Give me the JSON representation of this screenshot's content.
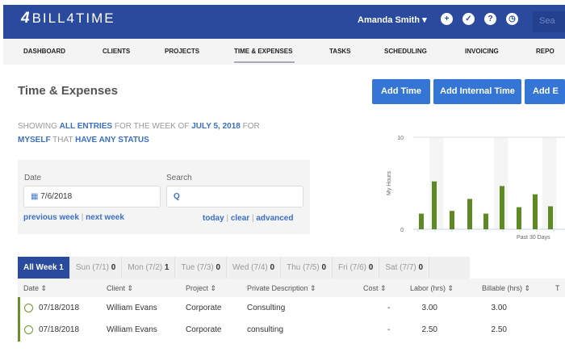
{
  "header": {
    "brand": "BILL4TIME",
    "user": "Amanda Smith",
    "search_placeholder": "Sea",
    "icons": [
      "plus-circle-icon",
      "check-circle-icon",
      "help-icon",
      "clock-icon"
    ]
  },
  "nav": [
    "DASHBOARD",
    "CLIENTS",
    "PROJECTS",
    "TIME & EXPENSES",
    "TASKS",
    "SCHEDULING",
    "INVOICING",
    "REPO"
  ],
  "page": {
    "title": "Time & Expenses",
    "buttons": [
      "Add Time",
      "Add Internal Time",
      "Add E"
    ]
  },
  "filter": {
    "showing": "SHOWING",
    "entries": "ALL ENTRIES",
    "week_of": "FOR THE WEEK OF",
    "date": "JULY 5, 2018",
    "for": "FOR",
    "who": "MYSELF",
    "that": "THAT",
    "status": "HAVE ANY STATUS"
  },
  "form": {
    "date_label": "Date",
    "date_value": "7/6/2018",
    "search_label": "Search",
    "search_value": "",
    "prev": "previous week",
    "next": "next week",
    "today": "today",
    "clear": "clear",
    "advanced": "advanced"
  },
  "chart_data": {
    "type": "bar",
    "ylabel": "My Hours",
    "xlabel": "Past 30 Days",
    "ylim": [
      0,
      10
    ],
    "yticks": [
      "0",
      "10"
    ],
    "values": [
      1.7,
      5.2,
      2.0,
      3.3,
      1.7,
      4.7,
      2.4,
      3.8,
      2.5
    ],
    "color": "#5e8a24"
  },
  "tabs": [
    {
      "label": "All Week",
      "count": "1"
    },
    {
      "label": "Sun (7/1)",
      "count": "0"
    },
    {
      "label": "Mon (7/2)",
      "count": "1"
    },
    {
      "label": "Tue (7/3)",
      "count": "0"
    },
    {
      "label": "Wed (7/4)",
      "count": "0"
    },
    {
      "label": "Thu (7/5)",
      "count": "0"
    },
    {
      "label": "Fri (7/6)",
      "count": "0"
    },
    {
      "label": "Sat (7/7)",
      "count": "0"
    }
  ],
  "table": {
    "columns": [
      "Date ⇕",
      "Client ⇕",
      "Project ⇕",
      "Private Description ⇕",
      "Cost ⇕",
      "Labor (hrs) ⇕",
      "Billable (hrs) ⇕",
      "T"
    ],
    "rows": [
      [
        "07/18/2018",
        "William Evans",
        "Corporate",
        "Consulting",
        "-",
        "3.00",
        "3.00"
      ],
      [
        "07/18/2018",
        "William Evans",
        "Corporate",
        "consulting",
        "-",
        "2.50",
        "2.50"
      ]
    ]
  }
}
